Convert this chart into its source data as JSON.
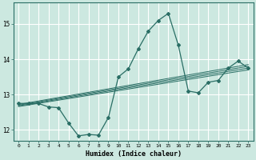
{
  "xlabel": "Humidex (Indice chaleur)",
  "xlim": [
    -0.5,
    23.5
  ],
  "ylim": [
    11.7,
    15.6
  ],
  "bg_color": "#cce8e0",
  "grid_color": "#ffffff",
  "line_color": "#2a6e65",
  "xticks": [
    0,
    1,
    2,
    3,
    4,
    5,
    6,
    7,
    8,
    9,
    10,
    11,
    12,
    13,
    14,
    15,
    16,
    17,
    18,
    19,
    20,
    21,
    22,
    23
  ],
  "yticks": [
    12,
    13,
    14,
    15
  ],
  "line1_x": [
    0,
    1,
    2,
    3,
    4,
    5,
    6,
    7,
    8,
    9,
    10,
    11,
    12,
    13,
    14,
    15,
    16,
    17,
    18,
    19,
    20,
    21,
    22,
    23
  ],
  "line1_y": [
    12.75,
    12.75,
    12.75,
    12.65,
    12.63,
    12.2,
    11.83,
    11.87,
    11.85,
    12.35,
    13.5,
    13.73,
    14.3,
    14.8,
    15.1,
    15.3,
    14.4,
    13.1,
    13.05,
    13.35,
    13.4,
    13.75,
    13.95,
    13.75
  ],
  "line2_x": [
    0,
    23
  ],
  "line2_y": [
    12.72,
    13.85
  ],
  "line3_x": [
    0,
    23
  ],
  "line3_y": [
    12.7,
    13.8
  ],
  "line4_x": [
    0,
    23
  ],
  "line4_y": [
    12.68,
    13.75
  ],
  "line5_x": [
    0,
    23
  ],
  "line5_y": [
    12.66,
    13.7
  ]
}
